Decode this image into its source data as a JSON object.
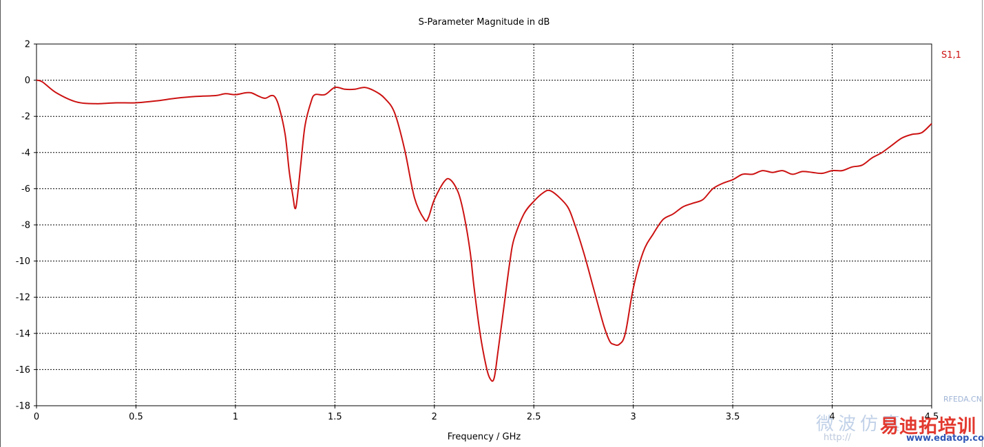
{
  "chart_data": {
    "type": "line",
    "title": "S-Parameter Magnitude in dB",
    "xlabel": "Frequency / GHz",
    "ylabel": "",
    "xlim": [
      0,
      4.5
    ],
    "ylim": [
      -18,
      2
    ],
    "xticks": [
      0,
      0.5,
      1,
      1.5,
      2,
      2.5,
      3,
      3.5,
      4,
      4.5
    ],
    "xtick_labels": [
      "0",
      "0.5",
      "1",
      "1.5",
      "2",
      "2.5",
      "3",
      "3.5",
      "4",
      "4.5"
    ],
    "yticks": [
      2,
      0,
      -2,
      -4,
      -6,
      -8,
      -10,
      -12,
      -14,
      -16,
      -18
    ],
    "ytick_labels": [
      "2",
      "0",
      "-2",
      "-4",
      "-6",
      "-8",
      "-10",
      "-12",
      "-14",
      "-16",
      "-18"
    ],
    "grid": true,
    "legend_position": "top-right",
    "series": [
      {
        "name": "S1,1",
        "color": "#cc1111",
        "x": [
          0,
          0.03,
          0.1,
          0.2,
          0.3,
          0.4,
          0.5,
          0.6,
          0.7,
          0.8,
          0.9,
          0.95,
          1.0,
          1.05,
          1.08,
          1.12,
          1.15,
          1.18,
          1.2,
          1.22,
          1.25,
          1.27,
          1.29,
          1.3,
          1.31,
          1.33,
          1.35,
          1.38,
          1.4,
          1.45,
          1.5,
          1.55,
          1.6,
          1.65,
          1.7,
          1.75,
          1.8,
          1.85,
          1.9,
          1.95,
          1.97,
          2.0,
          2.05,
          2.08,
          2.12,
          2.15,
          2.18,
          2.2,
          2.23,
          2.26,
          2.28,
          2.3,
          2.32,
          2.35,
          2.38,
          2.4,
          2.45,
          2.5,
          2.55,
          2.58,
          2.62,
          2.67,
          2.7,
          2.75,
          2.8,
          2.85,
          2.88,
          2.9,
          2.93,
          2.96,
          3.0,
          3.05,
          3.1,
          3.15,
          3.2,
          3.25,
          3.3,
          3.35,
          3.4,
          3.45,
          3.5,
          3.55,
          3.6,
          3.65,
          3.7,
          3.75,
          3.8,
          3.85,
          3.9,
          3.95,
          4.0,
          4.05,
          4.1,
          4.15,
          4.2,
          4.25,
          4.3,
          4.35,
          4.4,
          4.45,
          4.5
        ],
        "y": [
          0,
          -0.1,
          -0.7,
          -1.2,
          -1.3,
          -1.25,
          -1.25,
          -1.15,
          -1.0,
          -0.9,
          -0.85,
          -0.75,
          -0.8,
          -0.7,
          -0.7,
          -0.9,
          -1.0,
          -0.85,
          -0.95,
          -1.5,
          -3.0,
          -5.0,
          -6.5,
          -7.1,
          -6.6,
          -4.5,
          -2.5,
          -1.2,
          -0.8,
          -0.8,
          -0.4,
          -0.5,
          -0.5,
          -0.4,
          -0.6,
          -1.0,
          -1.8,
          -3.8,
          -6.5,
          -7.7,
          -7.6,
          -6.6,
          -5.6,
          -5.5,
          -6.2,
          -7.5,
          -9.5,
          -11.5,
          -14.0,
          -15.8,
          -16.5,
          -16.5,
          -15.0,
          -12.5,
          -10.0,
          -8.8,
          -7.4,
          -6.7,
          -6.2,
          -6.1,
          -6.4,
          -7.0,
          -7.8,
          -9.5,
          -11.5,
          -13.5,
          -14.4,
          -14.6,
          -14.6,
          -14.0,
          -11.5,
          -9.5,
          -8.5,
          -7.7,
          -7.4,
          -7.0,
          -6.8,
          -6.6,
          -6.0,
          -5.7,
          -5.5,
          -5.2,
          -5.2,
          -5.0,
          -5.1,
          -5.0,
          -5.2,
          -5.05,
          -5.1,
          -5.15,
          -5.0,
          -5.0,
          -4.8,
          -4.7,
          -4.3,
          -4.0,
          -3.6,
          -3.2,
          -3.0,
          -2.9,
          -2.4
        ]
      }
    ]
  },
  "watermark": {
    "site": "RFEDA.CN",
    "chinese": "微波仿真",
    "brand": "易迪拓培训",
    "url_left": "http://",
    "url_right": "www.edatop.com"
  }
}
